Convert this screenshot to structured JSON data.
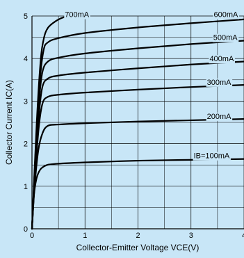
{
  "chart_data": {
    "type": "line",
    "title": "",
    "xlabel": "Collector-Emitter Voltage VCE(V)",
    "ylabel": "Collector Current IC(A)",
    "xlim": [
      0,
      4
    ],
    "ylim": [
      0,
      5
    ],
    "x_ticks": [
      "0",
      "1",
      "2",
      "3",
      "4"
    ],
    "y_ticks": [
      "0",
      "1",
      "2",
      "3",
      "4",
      "5"
    ],
    "grid": true,
    "series": [
      {
        "name": "IB=100mA",
        "points": [
          [
            0,
            0
          ],
          [
            0.03,
            0.7
          ],
          [
            0.08,
            1.15
          ],
          [
            0.15,
            1.38
          ],
          [
            0.25,
            1.48
          ],
          [
            0.4,
            1.52
          ],
          [
            1,
            1.56
          ],
          [
            2,
            1.6
          ],
          [
            3,
            1.62
          ],
          [
            4,
            1.64
          ]
        ]
      },
      {
        "name": "200mA",
        "points": [
          [
            0,
            0
          ],
          [
            0.05,
            1.0
          ],
          [
            0.12,
            1.85
          ],
          [
            0.2,
            2.25
          ],
          [
            0.3,
            2.42
          ],
          [
            0.5,
            2.45
          ],
          [
            1,
            2.48
          ],
          [
            2,
            2.52
          ],
          [
            3,
            2.55
          ],
          [
            4,
            2.58
          ]
        ]
      },
      {
        "name": "300mA",
        "points": [
          [
            0,
            0
          ],
          [
            0.06,
            1.3
          ],
          [
            0.13,
            2.4
          ],
          [
            0.2,
            2.95
          ],
          [
            0.3,
            3.1
          ],
          [
            0.5,
            3.15
          ],
          [
            1,
            3.2
          ],
          [
            2,
            3.27
          ],
          [
            3,
            3.33
          ],
          [
            4,
            3.38
          ]
        ]
      },
      {
        "name": "400mA",
        "points": [
          [
            0,
            0
          ],
          [
            0.07,
            1.6
          ],
          [
            0.14,
            2.8
          ],
          [
            0.2,
            3.35
          ],
          [
            0.3,
            3.53
          ],
          [
            0.5,
            3.6
          ],
          [
            1,
            3.67
          ],
          [
            2,
            3.77
          ],
          [
            3,
            3.86
          ],
          [
            4,
            3.93
          ]
        ]
      },
      {
        "name": "500mA",
        "points": [
          [
            0,
            0
          ],
          [
            0.07,
            1.8
          ],
          [
            0.14,
            3.1
          ],
          [
            0.2,
            3.7
          ],
          [
            0.3,
            3.93
          ],
          [
            0.5,
            4.02
          ],
          [
            1,
            4.12
          ],
          [
            2,
            4.24
          ],
          [
            3,
            4.34
          ],
          [
            4,
            4.42
          ]
        ]
      },
      {
        "name": "600mA",
        "points": [
          [
            0,
            0
          ],
          [
            0.08,
            2.1
          ],
          [
            0.15,
            3.5
          ],
          [
            0.22,
            4.2
          ],
          [
            0.3,
            4.38
          ],
          [
            0.5,
            4.48
          ],
          [
            1,
            4.6
          ],
          [
            2,
            4.73
          ],
          [
            3,
            4.83
          ],
          [
            4,
            4.92
          ]
        ]
      },
      {
        "name": "700mA",
        "points": [
          [
            0,
            0
          ],
          [
            0.09,
            2.5
          ],
          [
            0.16,
            3.9
          ],
          [
            0.22,
            4.45
          ],
          [
            0.3,
            4.72
          ],
          [
            0.45,
            4.88
          ],
          [
            0.6,
            4.97
          ],
          [
            0.75,
            5.0
          ]
        ]
      }
    ],
    "curve_labels": [
      {
        "text": "700mA",
        "x": 0.62,
        "y": 5.04
      },
      {
        "text": "600mA",
        "x": 3.43,
        "y": 5.04
      },
      {
        "text": "500mA",
        "x": 3.42,
        "y": 4.5
      },
      {
        "text": "400mA",
        "x": 3.35,
        "y": 4.0
      },
      {
        "text": "300mA",
        "x": 3.3,
        "y": 3.45
      },
      {
        "text": "200mA",
        "x": 3.3,
        "y": 2.65
      },
      {
        "text": "IB=100mA",
        "x": 3.05,
        "y": 1.72
      }
    ]
  }
}
